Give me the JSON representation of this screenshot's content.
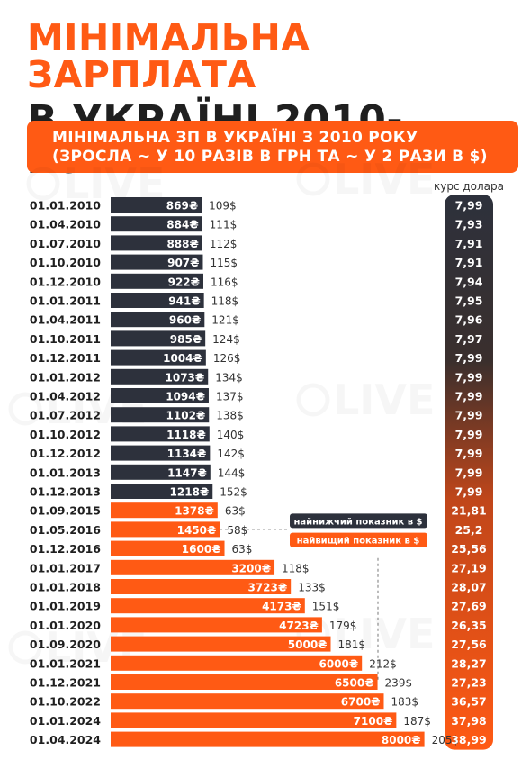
{
  "header": {
    "title_line1": "МІНІМАЛЬНА ЗАРПЛАТА",
    "title_line2": "В УКРАЇНІ 2010-2024",
    "subtitle_line1": "МІНІМАЛЬНА ЗП В УКРАЇНІ З 2010 РОКУ",
    "subtitle_line2": "(ЗРОСЛА ~ У 10 РАЗІВ В ГРН ТА ~ У 2 РАЗИ В $)"
  },
  "chart_data": {
    "type": "bar",
    "orientation": "horizontal",
    "categories": [
      "01.01.2010",
      "01.04.2010",
      "01.07.2010",
      "01.10.2010",
      "01.12.2010",
      "01.01.2011",
      "01.04.2011",
      "01.10.2011",
      "01.12.2011",
      "01.01.2012",
      "01.04.2012",
      "01.07.2012",
      "01.10.2012",
      "01.12.2012",
      "01.01.2013",
      "01.12.2013",
      "01.09.2015",
      "01.05.2016",
      "01.12.2016",
      "01.01.2017",
      "01.01.2018",
      "01.01.2019",
      "01.01.2020",
      "01.09.2020",
      "01.01.2021",
      "01.12.2021",
      "01.10.2022",
      "01.01.2024",
      "01.04.2024"
    ],
    "series": [
      {
        "values": [
          869,
          884,
          888,
          907,
          922,
          941,
          960,
          985,
          1004,
          1073,
          1094,
          1102,
          1118,
          1134,
          1147,
          1218,
          1378,
          1450,
          1600,
          3200,
          3723,
          4173,
          4723,
          5000,
          6000,
          6500,
          6700,
          7100,
          8000
        ],
        "unit": "₴"
      },
      {
        "values": [
          109,
          111,
          112,
          115,
          116,
          118,
          121,
          124,
          126,
          134,
          137,
          138,
          140,
          142,
          144,
          152,
          63,
          58,
          63,
          118,
          133,
          151,
          179,
          181,
          212,
          239,
          183,
          187,
          205
        ],
        "unit": "$"
      }
    ],
    "exchange_rate_label": "курс долара",
    "exchange_rates": [
      "7,99",
      "7,93",
      "7,91",
      "7,91",
      "7,94",
      "7,95",
      "7,96",
      "7,97",
      "7,99",
      "7,99",
      "7,99",
      "7,99",
      "7,99",
      "7,99",
      "7,99",
      "7,99",
      "21,81",
      "25,2",
      "25,56",
      "27,19",
      "28,07",
      "27,69",
      "26,35",
      "27,56",
      "28,27",
      "27,23",
      "36,57",
      "37,98",
      "38,99"
    ],
    "annotations": [
      {
        "text": "найнижчий показник в $",
        "index": 17
      },
      {
        "text": "найвищий показник в $",
        "index": 25
      }
    ],
    "colors": {
      "pre2015": "#2d313c",
      "post2015": "#ff5a14",
      "text_dark": "#1f1f1f"
    }
  },
  "watermark": "НОВИНИ LIVE"
}
